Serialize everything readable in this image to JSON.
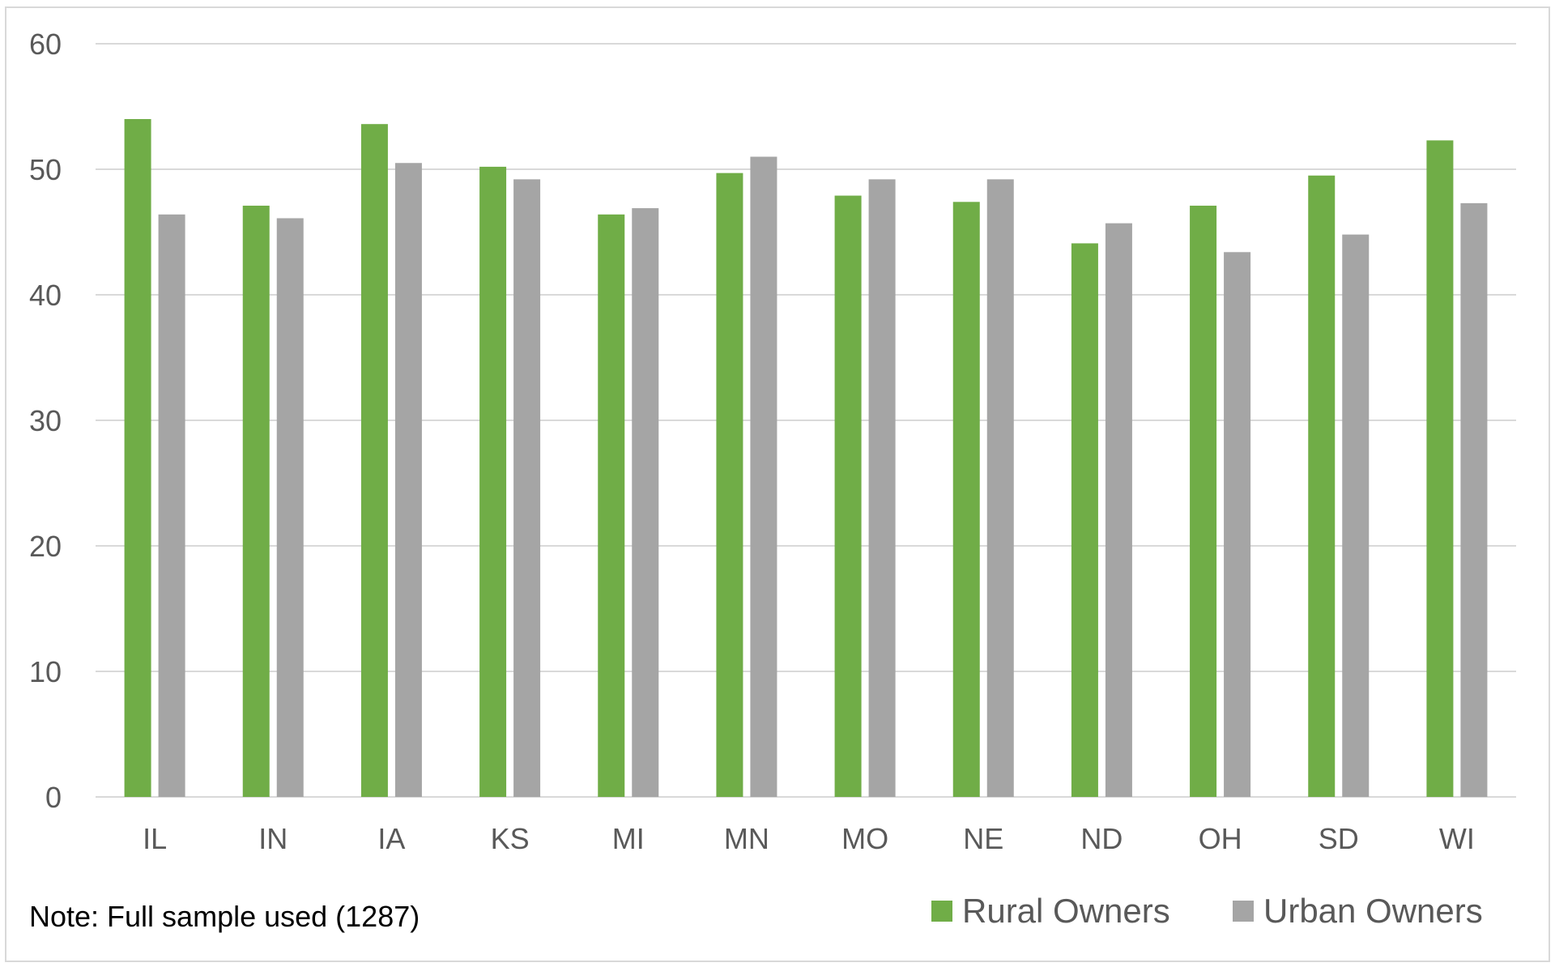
{
  "chart_data": {
    "type": "bar",
    "categories": [
      "IL",
      "IN",
      "IA",
      "KS",
      "MI",
      "MN",
      "MO",
      "NE",
      "ND",
      "OH",
      "SD",
      "WI"
    ],
    "series": [
      {
        "name": "Rural Owners",
        "color": "#70ad47",
        "values": [
          54.0,
          47.1,
          53.6,
          50.2,
          46.4,
          49.7,
          47.9,
          47.4,
          44.1,
          47.1,
          49.5,
          52.3
        ]
      },
      {
        "name": "Urban Owners",
        "color": "#a5a5a5",
        "values": [
          46.4,
          46.1,
          50.5,
          49.2,
          46.9,
          51.0,
          49.2,
          49.2,
          45.7,
          43.4,
          44.8,
          47.3
        ]
      }
    ],
    "ylim": [
      0,
      60
    ],
    "yticks": [
      0,
      10,
      20,
      30,
      40,
      50,
      60
    ],
    "grid": true,
    "legend_position": "bottom-right",
    "note": "Note: Full sample used (1287)",
    "colors": {
      "gridline": "#d9d9d9",
      "axis_text": "#595959"
    }
  }
}
